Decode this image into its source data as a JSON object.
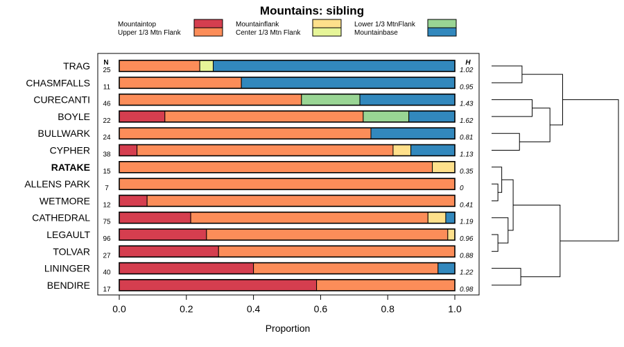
{
  "chart_data": {
    "type": "bar",
    "subtype": "stacked-horizontal-proportion-with-dendrogram",
    "title": "Mountains: sibling",
    "xlabel": "Proportion",
    "xlim": [
      0,
      1
    ],
    "xticks": [
      "0.0",
      "0.2",
      "0.4",
      "0.6",
      "0.8",
      "1.0"
    ],
    "n_header": "N",
    "h_header": "H",
    "legend": [
      {
        "name": "Mountaintop",
        "color": "#d53e4f"
      },
      {
        "name": "Upper 1/3 Mtn Flank",
        "color": "#fc8d59"
      },
      {
        "name": "Mountainflank",
        "color": "#fee08b"
      },
      {
        "name": "Center 1/3 Mtn Flank",
        "color": "#e6f598"
      },
      {
        "name": "Lower 1/3 MtnFlank",
        "color": "#99d594"
      },
      {
        "name": "Mountainbase",
        "color": "#3288bd"
      }
    ],
    "segment_order": [
      "Mountaintop",
      "Upper 1/3 Mtn Flank",
      "Mountainflank",
      "Center 1/3 Mtn Flank",
      "Lower 1/3 MtnFlank",
      "Mountainbase"
    ],
    "rows": [
      {
        "label": "TRAG",
        "n": "25",
        "h": "1.02",
        "bold": false,
        "values": [
          0,
          0.24,
          0,
          0.04,
          0,
          0.72
        ]
      },
      {
        "label": "CHASMFALLS",
        "n": "11",
        "h": "0.95",
        "bold": false,
        "values": [
          0,
          0.364,
          0,
          0,
          0,
          0.636
        ]
      },
      {
        "label": "CURECANTI",
        "n": "46",
        "h": "1.43",
        "bold": false,
        "values": [
          0,
          0.543,
          0,
          0,
          0.174,
          0.283
        ]
      },
      {
        "label": "BOYLE",
        "n": "22",
        "h": "1.62",
        "bold": false,
        "values": [
          0.136,
          0.591,
          0,
          0,
          0.136,
          0.137
        ]
      },
      {
        "label": "BULLWARK",
        "n": "24",
        "h": "0.81",
        "bold": false,
        "values": [
          0,
          0.75,
          0,
          0,
          0,
          0.25
        ]
      },
      {
        "label": "CYPHER",
        "n": "38",
        "h": "1.13",
        "bold": false,
        "values": [
          0.053,
          0.763,
          0.053,
          0,
          0,
          0.131
        ]
      },
      {
        "label": "RATAKE",
        "n": "15",
        "h": "0.35",
        "bold": true,
        "values": [
          0,
          0.933,
          0.067,
          0,
          0,
          0
        ]
      },
      {
        "label": "ALLENS PARK",
        "n": "7",
        "h": "0",
        "bold": false,
        "values": [
          0,
          1.0,
          0,
          0,
          0,
          0
        ]
      },
      {
        "label": "WETMORE",
        "n": "12",
        "h": "0.41",
        "bold": false,
        "values": [
          0.083,
          0.917,
          0,
          0,
          0,
          0
        ]
      },
      {
        "label": "CATHEDRAL",
        "n": "75",
        "h": "1.19",
        "bold": false,
        "values": [
          0.213,
          0.707,
          0.053,
          0,
          0,
          0.027
        ]
      },
      {
        "label": "LEGAULT",
        "n": "96",
        "h": "0.96",
        "bold": false,
        "values": [
          0.26,
          0.719,
          0.021,
          0,
          0,
          0
        ]
      },
      {
        "label": "TOLVAR",
        "n": "27",
        "h": "0.88",
        "bold": false,
        "values": [
          0.296,
          0.704,
          0,
          0,
          0,
          0
        ]
      },
      {
        "label": "LININGER",
        "n": "40",
        "h": "1.22",
        "bold": false,
        "values": [
          0.4,
          0.55,
          0,
          0,
          0,
          0.05
        ]
      },
      {
        "label": "BENDIRE",
        "n": "17",
        "h": "0.98",
        "bold": false,
        "values": [
          0.588,
          0.412,
          0,
          0,
          0,
          0
        ]
      }
    ],
    "dendrogram": {
      "leaves": [
        "TRAG",
        "CHASMFALLS",
        "CURECANTI",
        "BOYLE",
        "BULLWARK",
        "CYPHER",
        "RATAKE",
        "ALLENS PARK",
        "WETMORE",
        "CATHEDRAL",
        "LEGAULT",
        "TOLVAR",
        "LININGER",
        "BENDIRE"
      ],
      "merges": [
        {
          "a": "TRAG",
          "b": "CHASMFALLS",
          "height": 0.24
        },
        {
          "a": "CURECANTI",
          "b": "BOYLE",
          "height": 0.32
        },
        {
          "a": "BULLWARK",
          "b": "CYPHER",
          "height": 0.22
        },
        {
          "a": "m1",
          "b": "m2",
          "height": 0.46
        },
        {
          "a": "m3",
          "b": "m0",
          "height": 0.56
        },
        {
          "a": "ALLENS PARK",
          "b": "WETMORE",
          "height": 0.05
        },
        {
          "a": "RATAKE",
          "b": "m5",
          "height": 0.08
        },
        {
          "a": "LEGAULT",
          "b": "TOLVAR",
          "height": 0.05
        },
        {
          "a": "CATHEDRAL",
          "b": "m7",
          "height": 0.13
        },
        {
          "a": "m6",
          "b": "m8",
          "height": 0.17
        },
        {
          "a": "LININGER",
          "b": "BENDIRE",
          "height": 0.23
        },
        {
          "a": "m9",
          "b": "m10",
          "height": 0.54
        },
        {
          "a": "m4",
          "b": "m11",
          "height": 1.0
        }
      ]
    }
  }
}
